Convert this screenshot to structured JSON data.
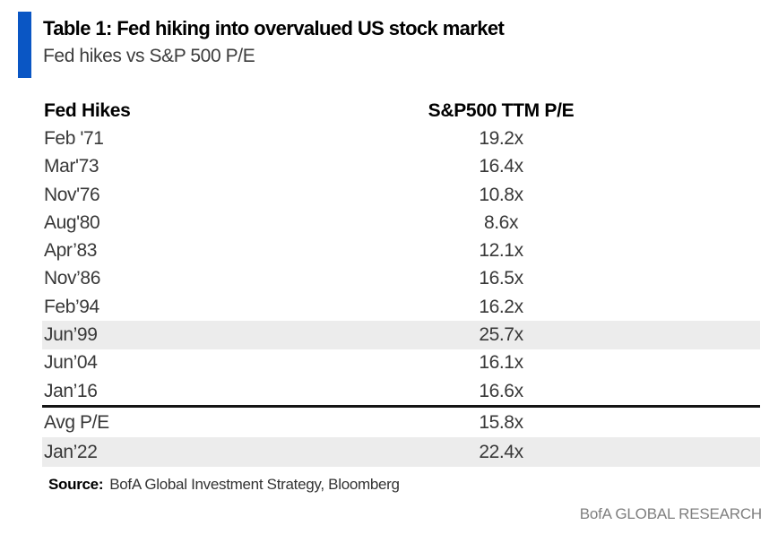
{
  "colors": {
    "accent_blue": "#0a56c4",
    "row_highlight": "#ececec",
    "divider": "#141414",
    "body_text": "#383838",
    "brand_gray": "#7f7f7f"
  },
  "header": {
    "title": "Table 1: Fed hiking into overvalued US stock market",
    "subtitle": "Fed hikes vs S&P 500 P/E"
  },
  "table": {
    "columns": [
      "Fed Hikes",
      "S&P500 TTM P/E"
    ],
    "rows": [
      {
        "label": "Feb '71",
        "value": "19.2x",
        "highlight": false
      },
      {
        "label": "Mar'73",
        "value": "16.4x",
        "highlight": false
      },
      {
        "label": "Nov'76",
        "value": "10.8x",
        "highlight": false
      },
      {
        "label": "Aug'80",
        "value": "8.6x",
        "highlight": false
      },
      {
        "label": "Apr’83",
        "value": "12.1x",
        "highlight": false
      },
      {
        "label": "Nov’86",
        "value": "16.5x",
        "highlight": false
      },
      {
        "label": "Feb’94",
        "value": "16.2x",
        "highlight": false
      },
      {
        "label": "Jun’99",
        "value": "25.7x",
        "highlight": true
      },
      {
        "label": "Jun’04",
        "value": "16.1x",
        "highlight": false
      },
      {
        "label": "Jan’16",
        "value": "16.6x",
        "highlight": false
      },
      {
        "label": "Avg P/E",
        "value": "15.8x",
        "highlight": false
      },
      {
        "label": "Jan’22",
        "value": "22.4x",
        "highlight": true
      }
    ]
  },
  "footer": {
    "source_label": "Source:",
    "source_text": "BofA Global Investment Strategy, Bloomberg",
    "brand": "BofA GLOBAL RESEARCH"
  },
  "chart_data": {
    "type": "table",
    "title": "Table 1: Fed hiking into overvalued US stock market",
    "subtitle": "Fed hikes vs S&P 500 P/E",
    "columns": [
      "Fed Hikes",
      "S&P500 TTM P/E"
    ],
    "categories": [
      "Feb '71",
      "Mar'73",
      "Nov'76",
      "Aug'80",
      "Apr’83",
      "Nov’86",
      "Feb’94",
      "Jun’99",
      "Jun’04",
      "Jan’16",
      "Avg P/E",
      "Jan’22"
    ],
    "values": [
      19.2,
      16.4,
      10.8,
      8.6,
      12.1,
      16.5,
      16.2,
      25.7,
      16.1,
      16.6,
      15.8,
      22.4
    ],
    "unit": "x (trailing-twelve-month P/E multiple)",
    "highlighted_rows": [
      "Jun’99",
      "Jan’22"
    ],
    "separator_after_row": "Jan’16",
    "source": "BofA Global Investment Strategy, Bloomberg",
    "branding": "BofA GLOBAL RESEARCH"
  }
}
